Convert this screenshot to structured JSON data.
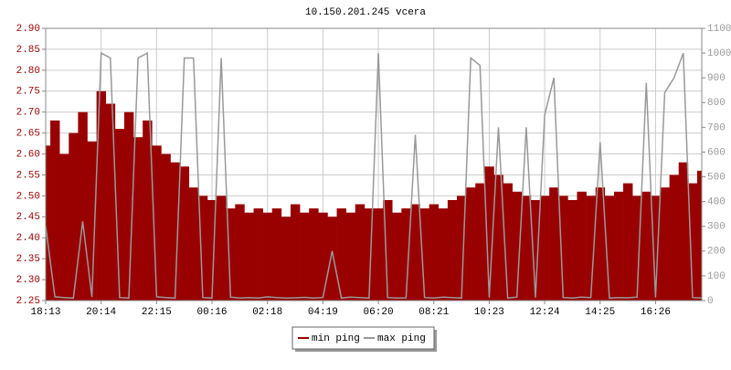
{
  "chart_data": {
    "type": "bar-line",
    "title": "10.150.201.245 vcera",
    "xlim": [
      0,
      71
    ],
    "xticks": [
      {
        "value": 0,
        "label": "18:13"
      },
      {
        "value": 6,
        "label": "20:14"
      },
      {
        "value": 12,
        "label": "22:15"
      },
      {
        "value": 18,
        "label": "00:16"
      },
      {
        "value": 24,
        "label": "02:18"
      },
      {
        "value": 30,
        "label": "04:19"
      },
      {
        "value": 36,
        "label": "06:20"
      },
      {
        "value": 42,
        "label": "08:21"
      },
      {
        "value": 48,
        "label": "10:23"
      },
      {
        "value": 54,
        "label": "12:24"
      },
      {
        "value": 60,
        "label": "14:25"
      },
      {
        "value": 66,
        "label": "16:26"
      }
    ],
    "ylim": [
      2.25,
      2.9
    ],
    "yticks": [
      2.25,
      {
        "value": 2.3,
        "label": "2.30"
      },
      2.35,
      {
        "value": 2.4,
        "label": "2.40"
      },
      2.45,
      {
        "value": 2.5,
        "label": "2.50"
      },
      2.55,
      {
        "value": 2.6,
        "label": "2.60"
      },
      2.65,
      {
        "value": 2.7,
        "label": "2.70"
      },
      2.75,
      {
        "value": 2.8,
        "label": "2.80"
      },
      2.85,
      {
        "value": 2.9,
        "label": "2.90"
      }
    ],
    "y2lim": [
      0,
      1100
    ],
    "y2ticks": [
      0,
      100,
      200,
      300,
      400,
      500,
      600,
      700,
      800,
      900,
      1000,
      1100
    ],
    "grid": true,
    "series": [
      {
        "name": "min ping",
        "color": "#990000",
        "kind": "bar",
        "values": [
          2.62,
          2.68,
          2.6,
          2.65,
          2.7,
          2.63,
          2.75,
          2.72,
          2.66,
          2.7,
          2.64,
          2.68,
          2.62,
          2.6,
          2.58,
          2.57,
          2.52,
          2.5,
          2.49,
          2.5,
          2.47,
          2.48,
          2.46,
          2.47,
          2.46,
          2.47,
          2.45,
          2.48,
          2.46,
          2.47,
          2.46,
          2.45,
          2.47,
          2.46,
          2.48,
          2.47,
          2.47,
          2.49,
          2.46,
          2.47,
          2.48,
          2.47,
          2.48,
          2.47,
          2.49,
          2.5,
          2.52,
          2.53,
          2.57,
          2.55,
          2.53,
          2.51,
          2.5,
          2.49,
          2.5,
          2.52,
          2.5,
          2.49,
          2.51,
          2.5,
          2.52,
          2.5,
          2.51,
          2.53,
          2.5,
          2.51,
          2.5,
          2.52,
          2.55,
          2.58,
          2.53,
          2.56
        ]
      },
      {
        "name": "max ping",
        "color": "#999999",
        "kind": "line",
        "axis": "y2",
        "values": [
          300,
          15,
          12,
          10,
          320,
          14,
          1000,
          980,
          12,
          10,
          980,
          1000,
          15,
          12,
          10,
          980,
          980,
          12,
          10,
          980,
          14,
          10,
          12,
          10,
          15,
          12,
          10,
          11,
          13,
          10,
          12,
          200,
          10,
          14,
          12,
          10,
          1000,
          12,
          10,
          11,
          670,
          12,
          10,
          14,
          12,
          10,
          980,
          950,
          12,
          700,
          10,
          14,
          700,
          12,
          750,
          900,
          12,
          10,
          14,
          12,
          640,
          10,
          12,
          11,
          14,
          880,
          12,
          840,
          900,
          1000,
          12,
          10
        ]
      }
    ]
  }
}
